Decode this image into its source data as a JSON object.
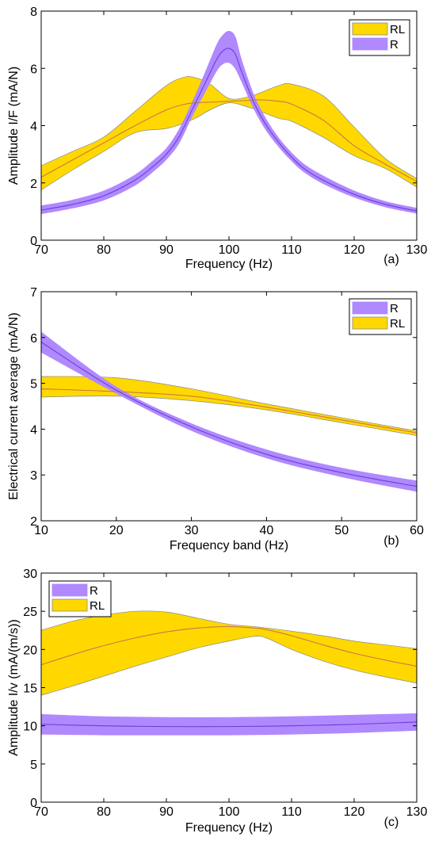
{
  "colors": {
    "RL": "#ffd800",
    "RL_edge": "#8a8a8a",
    "RL_line": "#c9794a",
    "R": "#b089ff",
    "R_line": "#6a3fd6"
  },
  "chart_data": [
    {
      "type": "area",
      "panel_label": "(a)",
      "xlabel": "Frequency (Hz)",
      "ylabel": "Amplitude I/F (mA/N)",
      "xlim": [
        70,
        130
      ],
      "ylim": [
        0,
        8
      ],
      "xticks": [
        70,
        80,
        90,
        100,
        110,
        120,
        130
      ],
      "yticks": [
        0,
        2,
        4,
        6,
        8
      ],
      "legend_position": "top-right",
      "legend": [
        "RL",
        "R"
      ],
      "series": [
        {
          "name": "RL",
          "x": [
            70,
            75,
            80,
            85,
            90,
            93,
            95,
            97,
            100,
            103,
            105,
            108,
            110,
            115,
            120,
            125,
            130
          ],
          "mean": [
            2.2,
            2.8,
            3.4,
            4.0,
            4.55,
            4.75,
            4.8,
            4.82,
            4.85,
            4.88,
            4.9,
            4.85,
            4.75,
            4.2,
            3.3,
            2.65,
            2.05
          ],
          "upper": [
            2.6,
            3.1,
            3.6,
            4.5,
            5.4,
            5.7,
            5.65,
            5.45,
            4.95,
            5.0,
            5.15,
            5.4,
            5.45,
            5.05,
            3.95,
            2.85,
            2.15
          ],
          "lower": [
            1.75,
            2.45,
            3.1,
            3.75,
            3.9,
            4.1,
            4.3,
            4.55,
            4.8,
            4.65,
            4.5,
            4.25,
            4.15,
            3.6,
            2.95,
            2.5,
            1.85
          ]
        },
        {
          "name": "R",
          "x": [
            70,
            75,
            80,
            85,
            88,
            90,
            92,
            94,
            96,
            98,
            99,
            100,
            101,
            102,
            104,
            106,
            108,
            110,
            112,
            115,
            120,
            125,
            130
          ],
          "mean": [
            1.05,
            1.25,
            1.55,
            2.1,
            2.6,
            3.0,
            3.6,
            4.5,
            5.4,
            6.3,
            6.6,
            6.7,
            6.5,
            5.9,
            4.8,
            4.0,
            3.4,
            2.9,
            2.5,
            2.1,
            1.6,
            1.25,
            1.02
          ],
          "upper": [
            1.2,
            1.4,
            1.72,
            2.28,
            2.8,
            3.2,
            3.85,
            4.75,
            5.75,
            6.8,
            7.15,
            7.3,
            7.1,
            6.3,
            5.05,
            4.2,
            3.55,
            3.05,
            2.65,
            2.25,
            1.72,
            1.35,
            1.12
          ],
          "lower": [
            0.92,
            1.12,
            1.4,
            1.92,
            2.42,
            2.82,
            3.38,
            4.28,
            5.1,
            5.9,
            6.15,
            6.2,
            6.0,
            5.55,
            4.58,
            3.82,
            3.25,
            2.77,
            2.38,
            1.98,
            1.5,
            1.16,
            0.94
          ]
        }
      ]
    },
    {
      "type": "area",
      "panel_label": "(b)",
      "xlabel": "Frequency band (Hz)",
      "ylabel": "Electrical current average (mA/N)",
      "xlim": [
        10,
        60
      ],
      "ylim": [
        2,
        7
      ],
      "xticks": [
        10,
        20,
        30,
        40,
        50,
        60
      ],
      "yticks": [
        2,
        3,
        4,
        5,
        6,
        7
      ],
      "legend_position": "top-right",
      "legend": [
        "R",
        "RL"
      ],
      "series": [
        {
          "name": "RL",
          "x": [
            10,
            20,
            30,
            40,
            50,
            60
          ],
          "mean": [
            4.88,
            4.82,
            4.72,
            4.48,
            4.2,
            3.92
          ],
          "upper": [
            5.15,
            5.12,
            4.88,
            4.55,
            4.25,
            3.96
          ],
          "lower": [
            4.7,
            4.72,
            4.62,
            4.42,
            4.14,
            3.86
          ]
        },
        {
          "name": "R",
          "x": [
            10,
            20,
            30,
            40,
            50,
            60
          ],
          "mean": [
            5.9,
            4.85,
            4.05,
            3.45,
            3.05,
            2.75
          ],
          "upper": [
            6.12,
            4.92,
            4.12,
            3.55,
            3.15,
            2.87
          ],
          "lower": [
            5.68,
            4.78,
            3.97,
            3.37,
            2.96,
            2.64
          ]
        }
      ]
    },
    {
      "type": "area",
      "panel_label": "(c)",
      "xlabel": "Frequency (Hz)",
      "ylabel": "Amplitude I/v (mA/(m/s))",
      "xlim": [
        70,
        130
      ],
      "ylim": [
        0,
        30
      ],
      "xticks": [
        70,
        80,
        90,
        100,
        110,
        120,
        130
      ],
      "yticks": [
        0,
        5,
        10,
        15,
        20,
        25,
        30
      ],
      "legend_position": "top-left",
      "legend": [
        "R",
        "RL"
      ],
      "series": [
        {
          "name": "RL",
          "x": [
            70,
            75,
            80,
            85,
            90,
            95,
            100,
            104,
            106,
            110,
            115,
            120,
            125,
            130
          ],
          "mean": [
            18.0,
            19.3,
            20.5,
            21.5,
            22.3,
            22.8,
            23.0,
            22.8,
            22.6,
            21.8,
            20.6,
            19.5,
            18.6,
            17.8
          ],
          "upper": [
            22.5,
            23.7,
            24.5,
            25.0,
            24.9,
            24.1,
            23.3,
            23.0,
            22.8,
            22.4,
            21.8,
            21.1,
            20.6,
            20.1
          ],
          "lower": [
            14.0,
            15.2,
            16.5,
            17.8,
            19.0,
            20.2,
            21.1,
            21.7,
            21.5,
            20.0,
            18.5,
            17.3,
            16.4,
            15.6
          ]
        },
        {
          "name": "R",
          "x": [
            70,
            80,
            90,
            100,
            110,
            120,
            130
          ],
          "mean": [
            10.2,
            10.0,
            9.9,
            9.9,
            10.0,
            10.2,
            10.5
          ],
          "upper": [
            11.5,
            11.2,
            11.1,
            11.1,
            11.2,
            11.4,
            11.6
          ],
          "lower": [
            8.9,
            8.8,
            8.8,
            8.8,
            8.9,
            9.1,
            9.4
          ]
        }
      ]
    }
  ]
}
